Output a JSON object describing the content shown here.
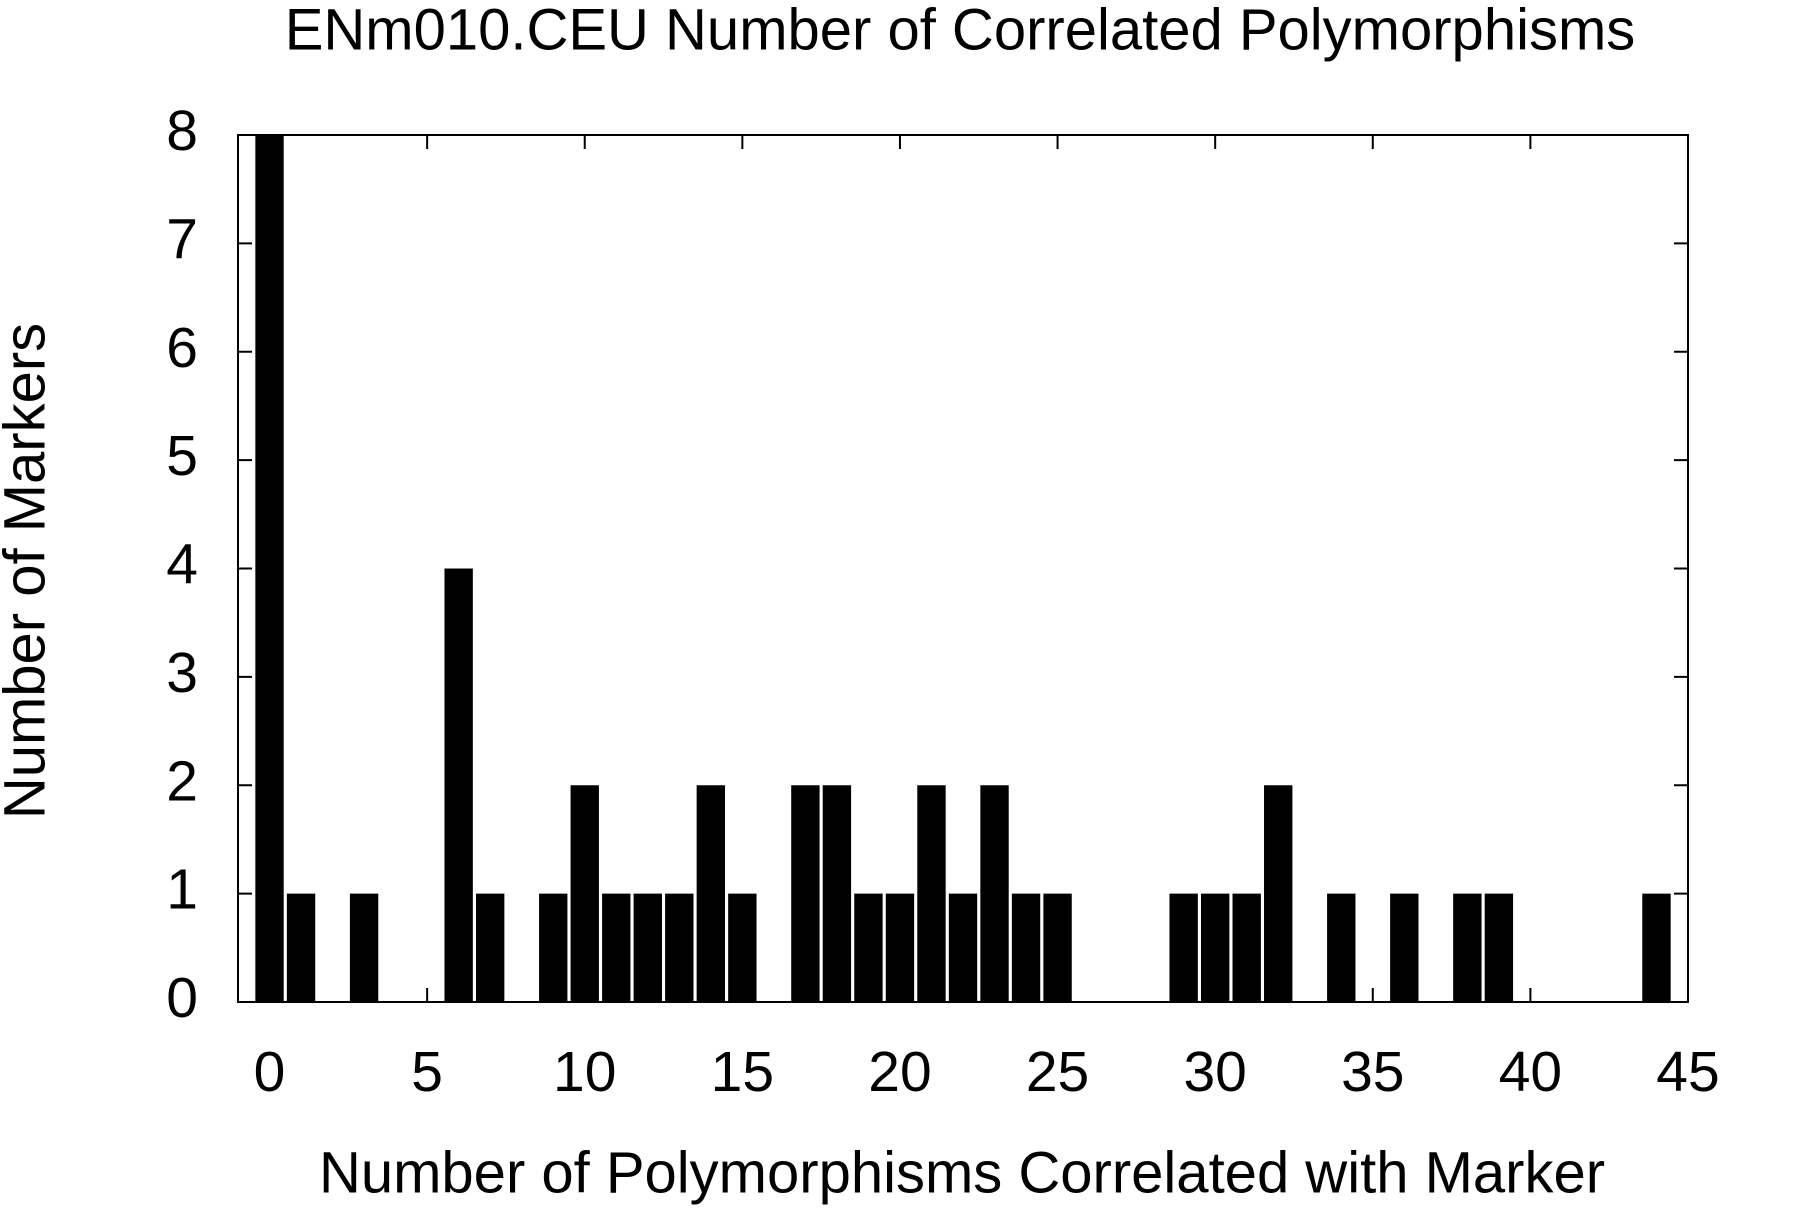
{
  "chart_data": {
    "type": "bar",
    "title": "ENm010.CEU Number of Correlated Polymorphisms",
    "x_label": "Number of Polymorphisms Correlated with Marker",
    "y_label": "Number of Markers",
    "x": [
      0,
      1,
      3,
      6,
      7,
      9,
      10,
      11,
      12,
      13,
      14,
      15,
      17,
      18,
      19,
      20,
      21,
      22,
      23,
      24,
      25,
      29,
      30,
      31,
      32,
      34,
      36,
      38,
      39,
      44
    ],
    "values": [
      8,
      1,
      1,
      4,
      1,
      1,
      2,
      1,
      1,
      1,
      2,
      1,
      2,
      2,
      1,
      1,
      2,
      1,
      2,
      1,
      1,
      1,
      1,
      1,
      2,
      1,
      1,
      1,
      1,
      1
    ],
    "color": "#000000",
    "xlim": [
      -1,
      45
    ],
    "xticks": [
      0,
      5,
      10,
      15,
      20,
      25,
      30,
      35,
      40,
      45
    ],
    "ylim": [
      0,
      8
    ],
    "yticks": [
      0,
      1,
      2,
      3,
      4,
      5,
      6,
      7,
      8
    ],
    "grid": false
  }
}
